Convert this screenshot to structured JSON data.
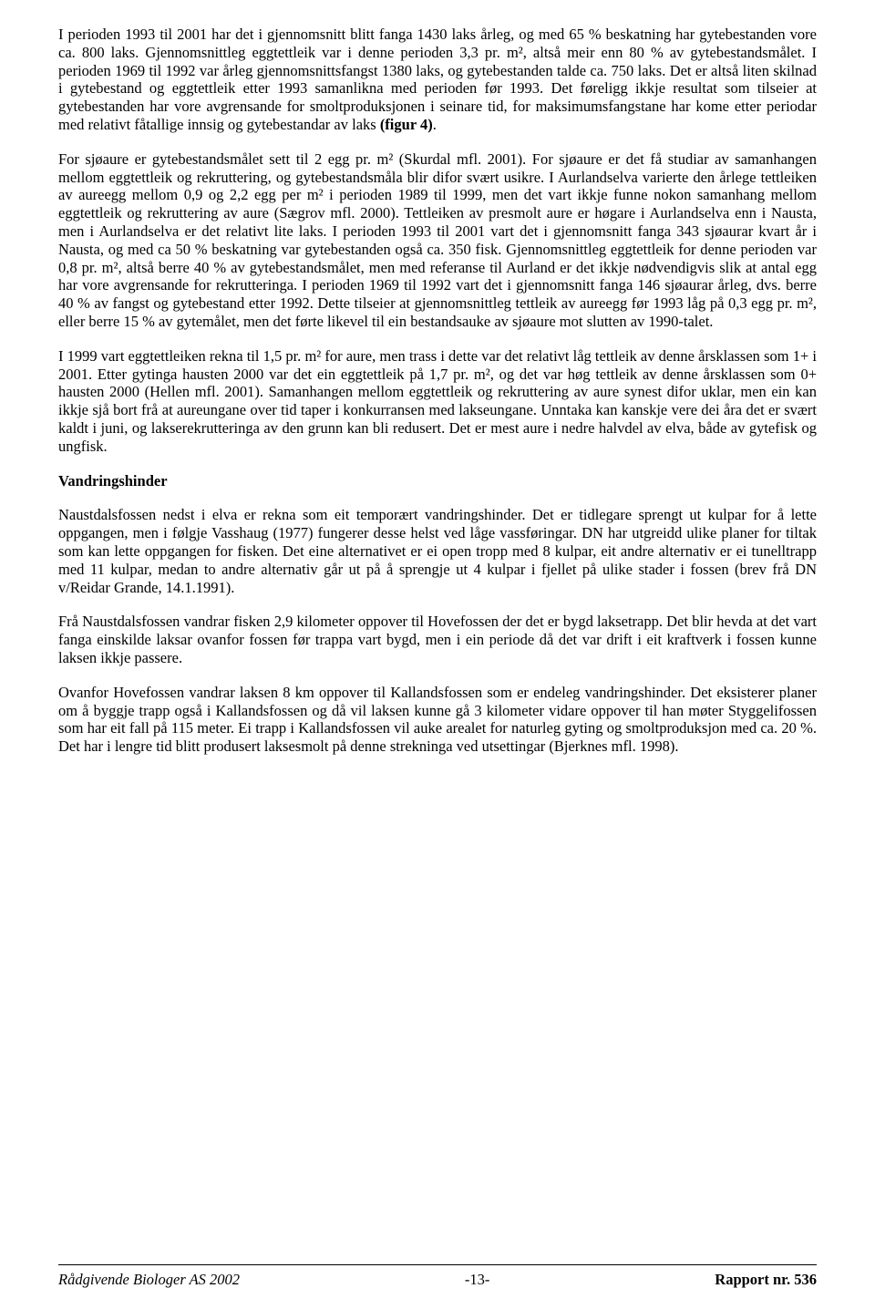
{
  "typography": {
    "font_family": "Times New Roman",
    "body_font_size_pt": 12,
    "line_height": 1.2,
    "text_align": "justify",
    "text_color": "#000000",
    "background_color": "#ffffff"
  },
  "paragraphs": {
    "p1_before_bold": "I perioden 1993 til 2001 har det i gjennomsnitt blitt fanga 1430 laks årleg, og med 65 % beskatning har gytebestanden vore ca. 800 laks. Gjennomsnittleg eggtettleik var i denne perioden 3,3 pr. m², altså meir enn 80 % av gytebestandsmålet. I perioden 1969 til 1992 var årleg gjennomsnittsfangst 1380 laks, og gytebestanden talde ca. 750 laks. Det er altså liten skilnad i gytebestand og eggtettleik etter 1993 samanlikna med perioden før 1993. Det føreligg ikkje resultat som tilseier at gytebestanden har vore avgrensande for smoltproduksjonen i seinare tid, for maksimumsfangstane har kome etter periodar med relativt fåtallige innsig og gytebestandar av laks ",
    "p1_bold": "(figur 4)",
    "p1_after_bold": ".",
    "p2": "For sjøaure er gytebestandsmålet sett til 2 egg pr. m² (Skurdal mfl. 2001). For sjøaure er det få studiar av samanhangen mellom eggtettleik og rekruttering, og gytebestandsmåla blir difor svært usikre. I Aurlandselva varierte den årlege tettleiken av aureegg mellom 0,9 og 2,2 egg per m² i perioden 1989 til 1999, men det vart ikkje funne nokon samanhang mellom eggtettleik og rekruttering av aure (Sægrov mfl. 2000). Tettleiken av presmolt aure er høgare i Aurlandselva enn i Nausta, men i Aurlandselva er det relativt lite laks. I perioden 1993 til 2001 vart det i gjennomsnitt fanga 343 sjøaurar kvart år i Nausta, og med ca 50 % beskatning var gytebestanden også ca. 350 fisk. Gjennomsnittleg eggtettleik for denne perioden var 0,8 pr. m², altså berre 40 % av gytebestandsmålet, men med referanse til Aurland er det ikkje nødvendigvis slik at antal egg har vore avgrensande for rekrutteringa. I perioden 1969 til 1992 vart det i gjennomsnitt fanga 146 sjøaurar årleg, dvs. berre 40 % av fangst og gytebestand etter 1992. Dette tilseier at gjennomsnittleg tettleik av aureegg før 1993 låg på 0,3 egg pr. m², eller berre 15 % av gytemålet, men det førte likevel til ein bestandsauke av sjøaure mot slutten av 1990-talet.",
    "p3": "I 1999 vart eggtettleiken rekna til 1,5 pr. m² for aure, men trass i dette var det relativt låg tettleik av denne årsklassen som 1+ i 2001. Etter gytinga hausten 2000 var det ein eggtettleik på 1,7 pr. m², og det var høg tettleik av denne årsklassen som 0+ hausten 2000 (Hellen mfl. 2001). Samanhangen mellom eggtettleik og rekruttering av aure synest difor uklar, men ein kan ikkje sjå bort frå at aureungane over tid taper i konkurransen med lakseungane. Unntaka kan kanskje vere dei åra det er svært kaldt i juni, og lakserekrutteringa av den grunn kan bli redusert. Det er mest aure i nedre halvdel av elva, både av gytefisk og ungfisk.",
    "heading": "Vandringshinder",
    "p4": "Naustdalsfossen nedst i elva er rekna som eit temporært vandringshinder. Det er tidlegare sprengt ut kulpar for å lette oppgangen, men i følgje Vasshaug (1977) fungerer desse helst ved låge vassføringar. DN har utgreidd ulike planer for tiltak som kan lette oppgangen for fisken. Det eine alternativet er ei open tropp med 8 kulpar, eit andre alternativ er ei tunelltrapp med 11 kulpar, medan to andre alternativ går ut på å sprengje ut 4 kulpar i fjellet på ulike stader i fossen (brev frå DN v/Reidar Grande, 14.1.1991).",
    "p5": "Frå Naustdalsfossen vandrar fisken 2,9 kilometer oppover til Hovefossen der det er bygd laksetrapp. Det blir hevda at det vart fanga einskilde laksar ovanfor fossen før trappa vart bygd, men i ein periode då det var drift i eit kraftverk i fossen kunne laksen ikkje passere.",
    "p6": "Ovanfor Hovefossen vandrar laksen 8 km oppover til Kallandsfossen som er endeleg vandringshinder. Det eksisterer planer om å byggje trapp også i Kallandsfossen og då vil laksen kunne gå 3 kilometer vidare oppover til han møter Styggelifossen som har eit fall på 115 meter. Ei trapp i Kallandsfossen vil auke arealet for naturleg gyting og smoltproduksjon med ca. 20 %. Det har i lengre tid blitt produsert laksesmolt på denne strekninga ved utsettingar (Bjerknes mfl. 1998)."
  },
  "footer": {
    "left": "Rådgivende Biologer AS 2002",
    "center": "-13-",
    "right": "Rapport nr. 536"
  }
}
